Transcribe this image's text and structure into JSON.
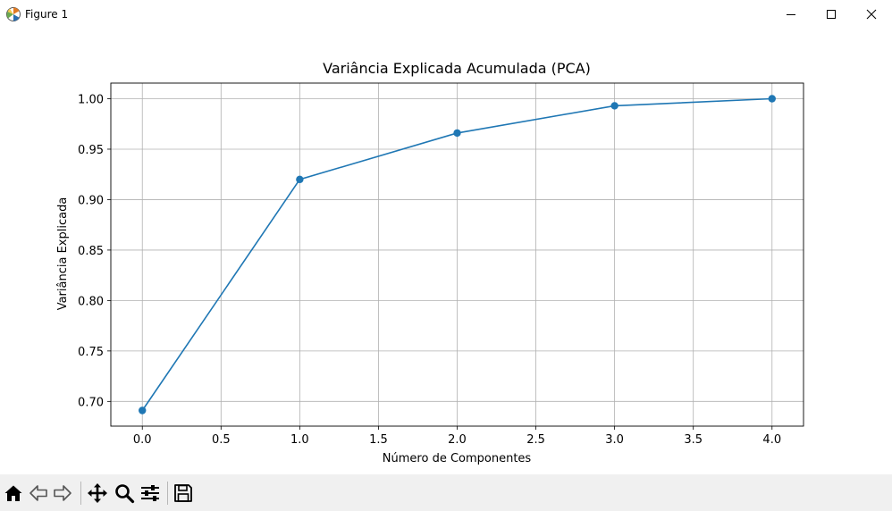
{
  "window": {
    "title": "Figure 1",
    "icons": {
      "app": "matplotlib-icon",
      "minimize": "minimize-icon",
      "maximize": "maximize-icon",
      "close": "close-icon"
    }
  },
  "toolbar": {
    "buttons": [
      "home-icon",
      "back-icon",
      "forward-icon",
      "pan-icon",
      "zoom-icon",
      "configure-subplots-icon",
      "save-icon"
    ]
  },
  "chart_data": {
    "type": "line",
    "title": "Variância Explicada Acumulada (PCA)",
    "xlabel": "Número de Componentes",
    "ylabel": "Variância Explicada",
    "x": [
      0,
      1,
      2,
      3,
      4
    ],
    "series": [
      {
        "values": [
          0.691,
          0.92,
          0.966,
          0.993,
          1.0
        ],
        "color": "#1f77b4",
        "marker": "circle"
      }
    ],
    "xlim": [
      -0.2,
      4.2
    ],
    "ylim": [
      0.6755,
      1.0155
    ],
    "xticks": [
      0.0,
      0.5,
      1.0,
      1.5,
      2.0,
      2.5,
      3.0,
      3.5,
      4.0
    ],
    "xtick_labels": [
      "0.0",
      "0.5",
      "1.0",
      "1.5",
      "2.0",
      "2.5",
      "3.0",
      "3.5",
      "4.0"
    ],
    "yticks": [
      0.7,
      0.75,
      0.8,
      0.85,
      0.9,
      0.95,
      1.0
    ],
    "ytick_labels": [
      "0.70",
      "0.75",
      "0.80",
      "0.85",
      "0.90",
      "0.95",
      "1.00"
    ],
    "grid": true
  }
}
